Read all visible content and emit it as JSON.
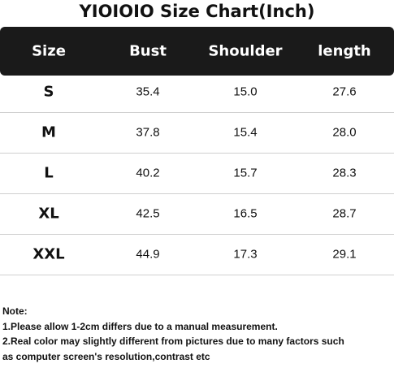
{
  "title": "YIOIOIO Size Chart(Inch)",
  "table": {
    "header": [
      "Size",
      "Bust",
      "Shoulder",
      "length"
    ],
    "rows": [
      [
        "S",
        "35.4",
        "15.0",
        "27.6"
      ],
      [
        "M",
        "37.8",
        "15.4",
        "28.0"
      ],
      [
        "L",
        "40.2",
        "15.7",
        "28.3"
      ],
      [
        "XL",
        "42.5",
        "16.5",
        "28.7"
      ],
      [
        "XXL",
        "44.9",
        "17.3",
        "29.1"
      ]
    ]
  },
  "notes": [
    "Note:",
    "1.Please allow 1-2cm differs due to a manual measurement.",
    "2.Real color may slightly different from pictures due to many factors such",
    "as computer screen's resolution,contrast etc"
  ]
}
